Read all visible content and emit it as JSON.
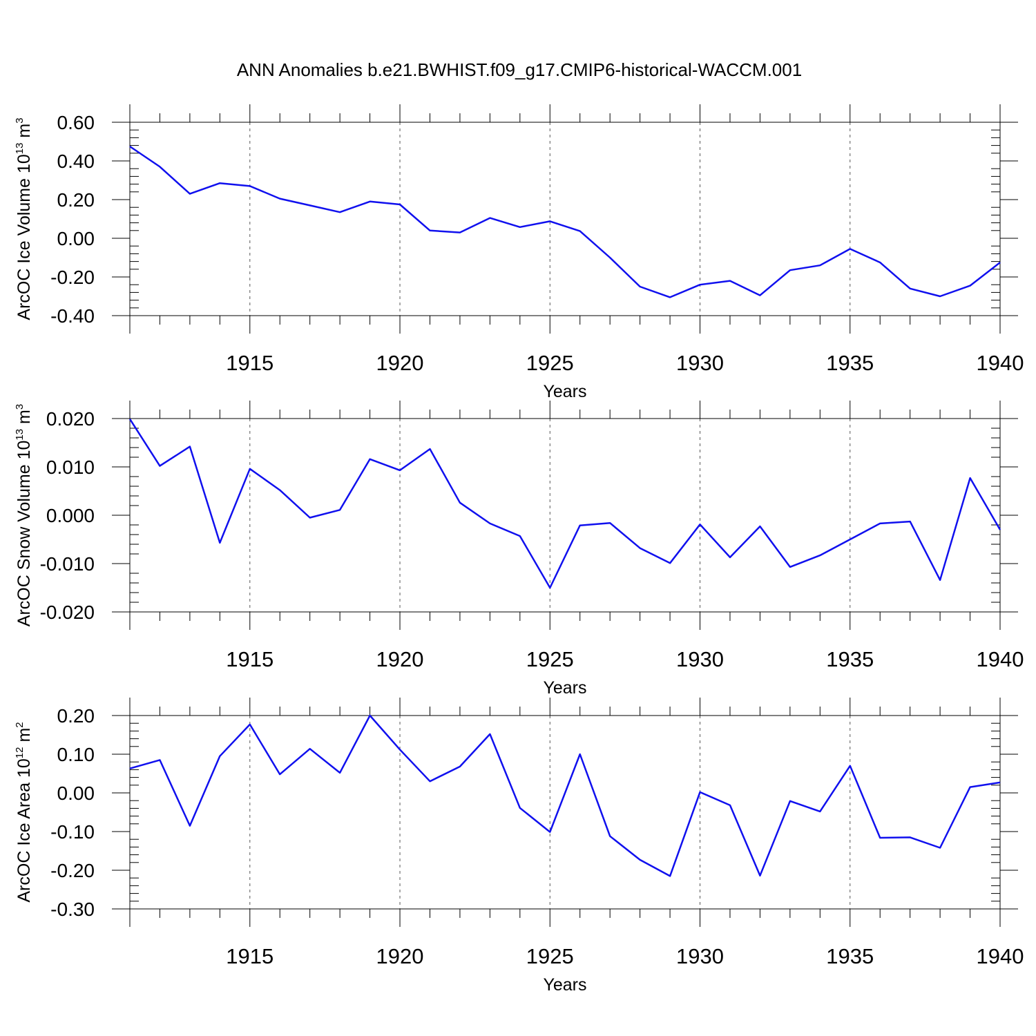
{
  "figure": {
    "title": "ANN Anomalies b.e21.BWHIST.f09_g17.CMIP6-historical-WACCM.001",
    "line_color": "#1010ee"
  },
  "chart_data": [
    {
      "type": "line",
      "xlabel": "Years",
      "ylabel": "ArcOC Ice Volume 10",
      "ylabel_exp": "13",
      "ylabel_unit": " m",
      "ylabel_unit_exp": "3",
      "xlim": [
        1911,
        1940
      ],
      "ylim": [
        -0.4,
        0.6
      ],
      "yticks": [
        -0.4,
        -0.2,
        0.0,
        0.2,
        0.4,
        0.6
      ],
      "ytick_labels": [
        "-0.40",
        "-0.20",
        "0.00",
        "0.20",
        "0.40",
        "0.60"
      ],
      "xticks": [
        1915,
        1920,
        1925,
        1930,
        1935,
        1940
      ],
      "xtick_labels": [
        "1915",
        "1920",
        "1925",
        "1930",
        "1935",
        "1940"
      ],
      "grid": "vertical dashed at major x ticks",
      "x": [
        1911,
        1912,
        1913,
        1914,
        1915,
        1916,
        1917,
        1918,
        1919,
        1920,
        1921,
        1922,
        1923,
        1924,
        1925,
        1926,
        1927,
        1928,
        1929,
        1930,
        1931,
        1932,
        1933,
        1934,
        1935,
        1936,
        1937,
        1938,
        1939,
        1940
      ],
      "series": [
        {
          "values": [
            0.475,
            0.37,
            0.23,
            0.285,
            0.27,
            0.205,
            0.17,
            0.135,
            0.19,
            0.175,
            0.04,
            0.03,
            0.105,
            0.058,
            0.088,
            0.037,
            -0.1,
            -0.25,
            -0.305,
            -0.24,
            -0.22,
            -0.295,
            -0.165,
            -0.14,
            -0.055,
            -0.125,
            -0.26,
            -0.3,
            -0.245,
            -0.125
          ]
        }
      ]
    },
    {
      "type": "line",
      "xlabel": "Years",
      "ylabel": "ArcOC Snow Volume 10",
      "ylabel_exp": "13",
      "ylabel_unit": " m",
      "ylabel_unit_exp": "3",
      "xlim": [
        1911,
        1940
      ],
      "ylim": [
        -0.02,
        0.02
      ],
      "yticks": [
        -0.02,
        -0.01,
        0.0,
        0.01,
        0.02
      ],
      "ytick_labels": [
        "-0.020",
        "-0.010",
        "0.000",
        "0.010",
        "0.020"
      ],
      "xticks": [
        1915,
        1920,
        1925,
        1930,
        1935,
        1940
      ],
      "xtick_labels": [
        "1915",
        "1920",
        "1925",
        "1930",
        "1935",
        "1940"
      ],
      "grid": "vertical dashed at major x ticks",
      "x": [
        1911,
        1912,
        1913,
        1914,
        1915,
        1916,
        1917,
        1918,
        1919,
        1920,
        1921,
        1922,
        1923,
        1924,
        1925,
        1926,
        1927,
        1928,
        1929,
        1930,
        1931,
        1932,
        1933,
        1934,
        1935,
        1936,
        1937,
        1938,
        1939,
        1940
      ],
      "series": [
        {
          "values": [
            0.0199,
            0.0102,
            0.0142,
            -0.0057,
            0.0096,
            0.0052,
            -0.0005,
            0.0011,
            0.0116,
            0.0093,
            0.0137,
            0.0026,
            -0.0017,
            -0.0043,
            -0.015,
            -0.0021,
            -0.0016,
            -0.0068,
            -0.0099,
            -0.0019,
            -0.0087,
            -0.0023,
            -0.0107,
            -0.0083,
            -0.005,
            -0.0017,
            -0.0013,
            -0.0134,
            0.0077,
            -0.003
          ]
        }
      ]
    },
    {
      "type": "line",
      "xlabel": "Years",
      "ylabel": "ArcOC Ice Area 10",
      "ylabel_exp": "12",
      "ylabel_unit": " m",
      "ylabel_unit_exp": "2",
      "xlim": [
        1911,
        1940
      ],
      "ylim": [
        -0.3,
        0.2
      ],
      "yticks": [
        -0.3,
        -0.2,
        -0.1,
        0.0,
        0.1,
        0.2
      ],
      "ytick_labels": [
        "-0.30",
        "-0.20",
        "-0.10",
        "0.00",
        "0.10",
        "0.20"
      ],
      "xticks": [
        1915,
        1920,
        1925,
        1930,
        1935,
        1940
      ],
      "xtick_labels": [
        "1915",
        "1920",
        "1925",
        "1930",
        "1935",
        "1940"
      ],
      "grid": "vertical dashed at major x ticks",
      "x": [
        1911,
        1912,
        1913,
        1914,
        1915,
        1916,
        1917,
        1918,
        1919,
        1920,
        1921,
        1922,
        1923,
        1924,
        1925,
        1926,
        1927,
        1928,
        1929,
        1930,
        1931,
        1932,
        1933,
        1934,
        1935,
        1936,
        1937,
        1938,
        1939,
        1940
      ],
      "series": [
        {
          "values": [
            0.063,
            0.085,
            -0.085,
            0.095,
            0.177,
            0.048,
            0.114,
            0.052,
            0.2,
            0.112,
            0.03,
            0.068,
            0.152,
            -0.039,
            -0.101,
            0.1,
            -0.112,
            -0.173,
            -0.215,
            0.002,
            -0.032,
            -0.214,
            -0.021,
            -0.048,
            0.07,
            -0.116,
            -0.115,
            -0.142,
            0.015,
            0.027
          ]
        }
      ]
    }
  ]
}
